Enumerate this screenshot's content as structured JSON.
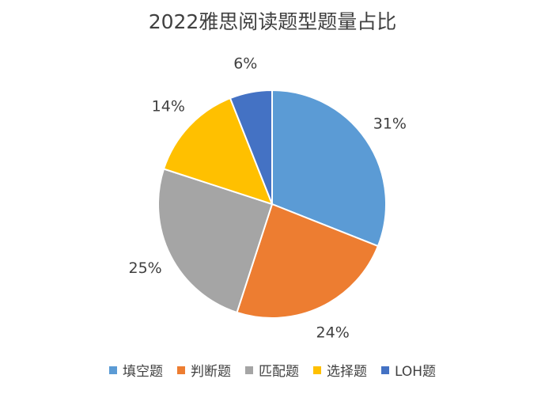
{
  "chart_data": {
    "type": "pie",
    "title": "2022雅思阅读题型题量占比",
    "categories": [
      "填空题",
      "判断题",
      "匹配题",
      "选择题",
      "LOH题"
    ],
    "values": [
      31,
      24,
      25,
      14,
      6
    ],
    "labels": [
      "31%",
      "24%",
      "25%",
      "14%",
      "6%"
    ],
    "colors": [
      "#5B9BD5",
      "#ED7D31",
      "#A5A5A5",
      "#FFC000",
      "#4472C4"
    ],
    "legend_position": "bottom"
  }
}
